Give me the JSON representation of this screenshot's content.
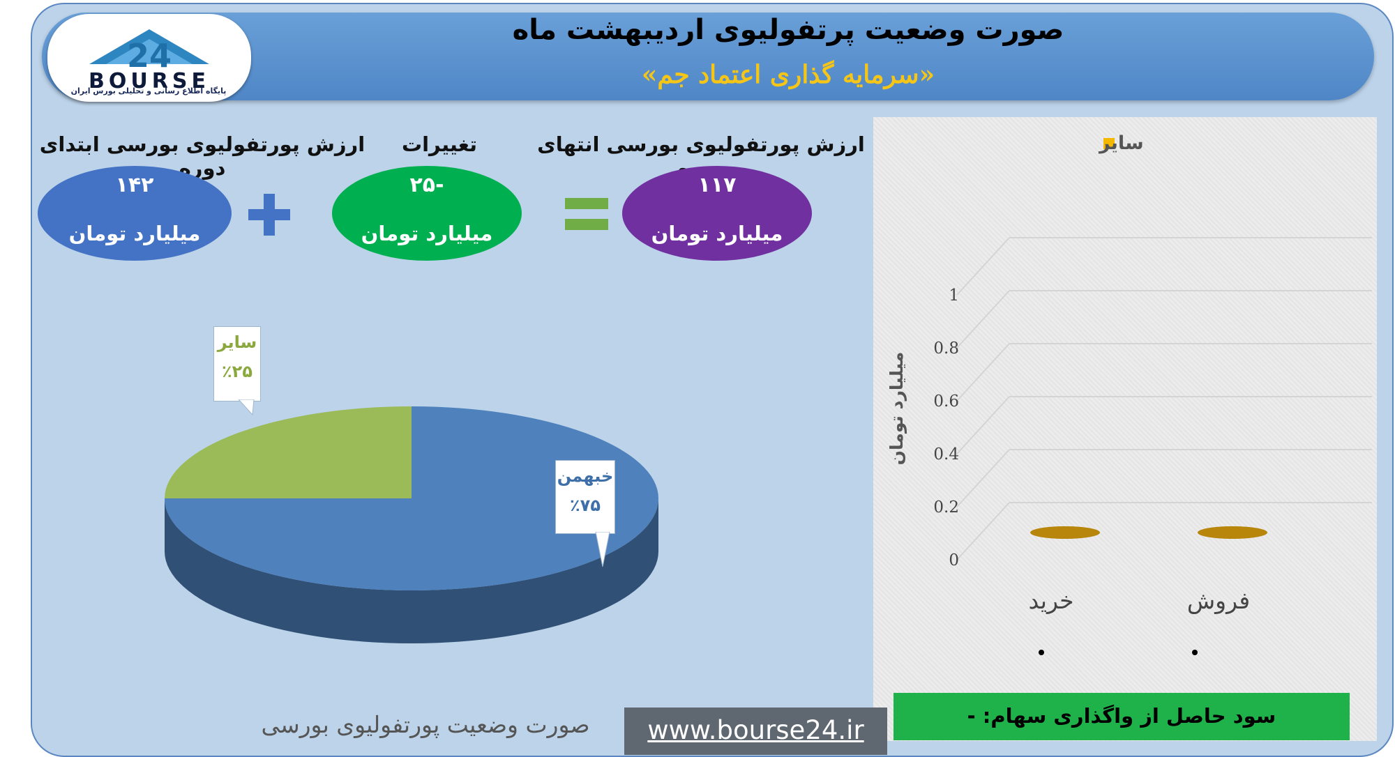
{
  "header": {
    "title": "صورت وضعیت پرتفولیوی اردیبهشت ماه",
    "subtitle": "«سرمایه گذاری اعتماد جم»",
    "logo_text": "BOURSE",
    "logo_number": "24",
    "logo_subtitle": "پایگاه اطلاع رسانی و تحلیلی بورس ایران"
  },
  "summary": {
    "start": {
      "label": "ارزش پورتفولیوی بورسی ابتدای دوره",
      "value": "۱۴۲",
      "unit": "میلیارد تومان",
      "color": "#4472c4"
    },
    "change": {
      "label": "تغییرات",
      "value": "-۲۵",
      "unit": "میلیارد تومان",
      "color": "#00b050"
    },
    "end": {
      "label": "ارزش پورتفولیوی بورسی انتهای دوره",
      "value": "۱۱۷",
      "unit": "میلیارد تومان",
      "color": "#7030a0"
    },
    "plus_color": "#4472c4",
    "equals_color": "#70ad47"
  },
  "chart_data": [
    {
      "type": "pie",
      "slices": [
        {
          "label": "خبهمن",
          "value": 75,
          "display": "٪۷۵",
          "color": "#4f81bd"
        },
        {
          "label": "سایر",
          "value": 25,
          "display": "٪۲۵",
          "color": "#9bbb59"
        }
      ],
      "caption": "صورت وضعیت پورتفولیوی بورسی"
    },
    {
      "type": "bar",
      "categories": [
        "خرید",
        "فروش"
      ],
      "series": [
        {
          "name": "سایر",
          "values": [
            0,
            0
          ],
          "color": "#f5b800"
        }
      ],
      "ylabel": "میلیارد تومان",
      "yticks": [
        "0",
        "0.2",
        "0.4",
        "0.6",
        "0.8",
        "1"
      ],
      "ylim": [
        0,
        1
      ],
      "grid": true,
      "legend": "top"
    }
  ],
  "profit_text": "سود حاصل از واگذاری سهام: -",
  "website": "www.bourse24.ir"
}
